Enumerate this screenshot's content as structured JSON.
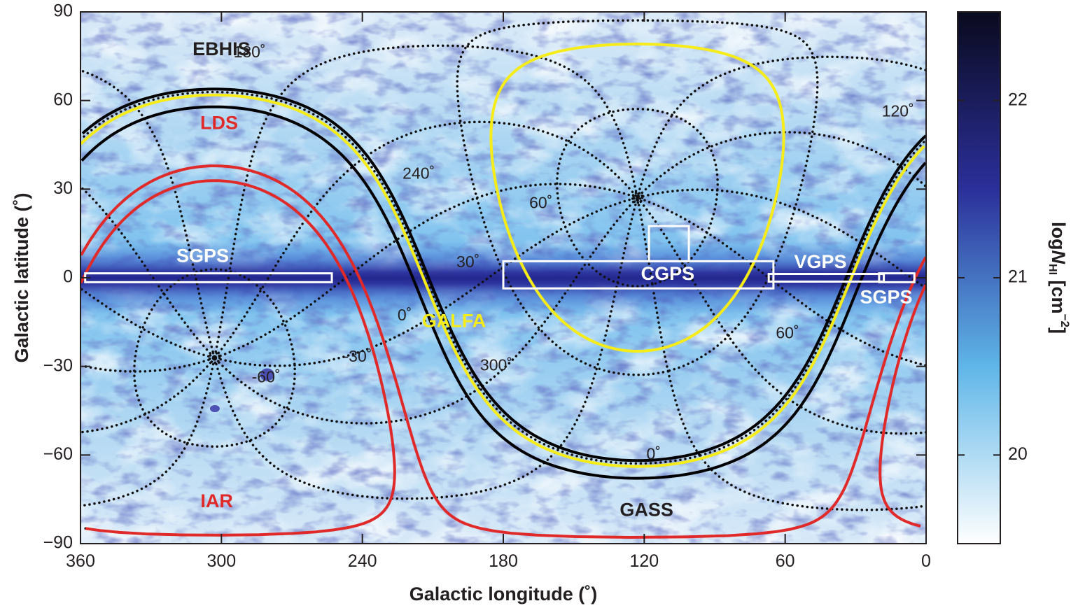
{
  "chart_data": {
    "type": "heatmap",
    "projection": "plate carree all-sky map in Galactic coordinates",
    "xlabel": "Galactic longitude (˚)",
    "ylabel": "Galactic latitude (˚)",
    "xlim": [
      360,
      0
    ],
    "ylim": [
      -90,
      90
    ],
    "x_ticks": [
      360,
      300,
      240,
      180,
      120,
      60,
      0
    ],
    "y_ticks": [
      90,
      60,
      30,
      0,
      -30,
      -60,
      -90
    ],
    "colorbar": {
      "label_prefix": "log",
      "label_symbol": "N",
      "label_sub": "HI",
      "label_unit": " [cm",
      "label_sup": "−2",
      "label_close": "]",
      "range": [
        19.5,
        22.5
      ],
      "ticks": [
        22,
        21,
        20
      ],
      "colors": [
        "#ffffff",
        "#5fb6e8",
        "#2b2f9a",
        "#0a0a1e"
      ]
    },
    "background_map": {
      "plane_color": "#2f35a3",
      "sky_color": "#a9d6f3",
      "note_features": [
        "galactic plane",
        "Magellanic Clouds"
      ]
    },
    "equatorial_grid": {
      "dec_lines": [
        60,
        30,
        0,
        -30,
        -60
      ],
      "ra_lines": [
        0,
        30,
        60,
        90,
        120,
        150,
        180,
        210,
        240,
        270,
        300,
        330
      ],
      "labels": [
        {
          "text": "180˚",
          "l": 288,
          "b": 76
        },
        {
          "text": "240˚",
          "l": 216,
          "b": 35
        },
        {
          "text": "60˚",
          "l": 164,
          "b": 25
        },
        {
          "text": "30˚",
          "l": 195,
          "b": 5
        },
        {
          "text": "0˚",
          "l": 222,
          "b": -13
        },
        {
          "text": "-30˚",
          "l": 242,
          "b": -27
        },
        {
          "text": "-60˚",
          "l": 281,
          "b": -34
        },
        {
          "text": "300˚",
          "l": 183,
          "b": -30
        },
        {
          "text": "120˚",
          "l": 12,
          "b": 56
        },
        {
          "text": "60˚",
          "l": 59,
          "b": -19
        },
        {
          "text": "0˚",
          "l": 116,
          "b": -60
        }
      ],
      "poles": [
        {
          "name": "north",
          "l": 122.9,
          "b": 27.1
        },
        {
          "name": "south",
          "l": 302.9,
          "b": -27.1
        }
      ],
      "color": "#111111"
    },
    "survey_boundaries": [
      {
        "name": "EBHIS",
        "kind": "declination limit",
        "dec": -5,
        "color": "#000000"
      },
      {
        "name": "GALFA",
        "kind": "declination band",
        "dec_range": [
          -1,
          38
        ],
        "color": "#f5ec1a"
      },
      {
        "name": "LDS",
        "kind": "declination limit",
        "dec": -30,
        "color": "#e02a2a"
      },
      {
        "name": "IAR",
        "kind": "declination limit",
        "dec": -25,
        "color": "#e02a2a"
      },
      {
        "name": "GASS",
        "kind": "declination limit",
        "dec": 1,
        "color": "#000000"
      }
    ],
    "plane_surveys": [
      {
        "name": "SGPS",
        "l_range": [
          253,
          358
        ],
        "b_range": [
          -1.5,
          1.5
        ]
      },
      {
        "name": "CGPS",
        "l_range": [
          65,
          180
        ],
        "b_range": [
          -3.6,
          5.6
        ]
      },
      {
        "name": "CGPS",
        "l_range": [
          101,
          118
        ],
        "b_range": [
          5.6,
          17.5
        ]
      },
      {
        "name": "VGPS",
        "l_range": [
          18,
          67
        ],
        "b_range": [
          -1.3,
          1.3
        ]
      },
      {
        "name": "SGPS",
        "l_range": [
          5,
          20
        ],
        "b_range": [
          -1.5,
          1.5
        ]
      }
    ],
    "labels": [
      {
        "text": "EBHIS",
        "l": 300,
        "b": 77,
        "color": "#231f20"
      },
      {
        "text": "LDS",
        "l": 301,
        "b": 52,
        "color": "#e02a2a"
      },
      {
        "text": "IAR",
        "l": 302,
        "b": -76,
        "color": "#e02a2a"
      },
      {
        "text": "SGPS",
        "l": 308,
        "b": 7,
        "color": "#ffffff"
      },
      {
        "text": "GALFA",
        "l": 201,
        "b": -15,
        "color": "#f5ec1a"
      },
      {
        "text": "CGPS",
        "l": 110,
        "b": 1,
        "color": "#ffffff"
      },
      {
        "text": "VGPS",
        "l": 45,
        "b": 5,
        "color": "#ffffff"
      },
      {
        "text": "SGPS",
        "l": 17,
        "b": -7,
        "color": "#ffffff"
      },
      {
        "text": "GASS",
        "l": 119,
        "b": -79,
        "color": "#231f20"
      }
    ]
  }
}
